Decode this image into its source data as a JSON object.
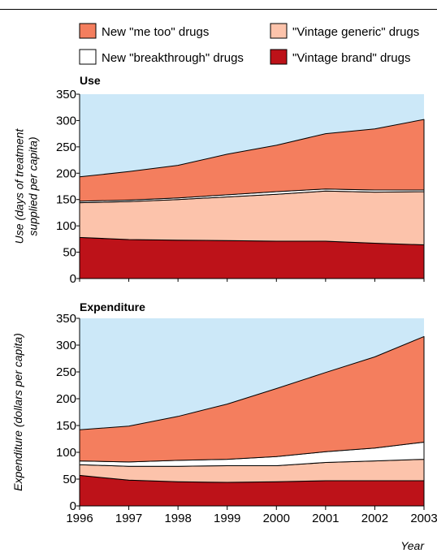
{
  "chart_data": {
    "type": "area",
    "stacked": true,
    "x": [
      1996,
      1997,
      1998,
      1999,
      2000,
      2001,
      2002,
      2003
    ],
    "xlabel": "Year",
    "legend": [
      {
        "name": "New \"me too\" drugs",
        "color": "#f47e5e"
      },
      {
        "name": "\"Vintage generic\" drugs",
        "color": "#fcc3ab"
      },
      {
        "name": "New \"breakthrough\" drugs",
        "color": "#ffffff"
      },
      {
        "name": "\"Vintage brand\" drugs",
        "color": "#bd1219"
      }
    ],
    "panels": [
      {
        "title": "Use",
        "ylabel_lines": [
          "Use (days of treatment",
          "supplied per capita)"
        ],
        "ylim": [
          0,
          350
        ],
        "yticks": [
          0,
          50,
          100,
          150,
          200,
          250,
          300,
          350
        ],
        "series": [
          {
            "name": "\"Vintage brand\" drugs",
            "color": "#bd1219",
            "values": [
              78,
              74,
              73,
              72,
              71,
              71,
              67,
              64
            ]
          },
          {
            "name": "\"Vintage generic\" drugs",
            "color": "#fcc3ab",
            "values": [
              66,
              72,
              77,
              83,
              89,
              95,
              97,
              101
            ]
          },
          {
            "name": "New \"breakthrough\" drugs",
            "color": "#ffffff",
            "values": [
              3,
              3,
              3,
              4,
              5,
              4,
              4,
              3
            ]
          },
          {
            "name": "New \"me too\" drugs",
            "color": "#f47e5e",
            "values": [
              46,
              54,
              62,
              77,
              88,
              105,
              116,
              134
            ]
          }
        ]
      },
      {
        "title": "Expenditure",
        "ylabel_lines": [
          "Expenditure (dollars per capita)"
        ],
        "ylim": [
          0,
          350
        ],
        "yticks": [
          0,
          50,
          100,
          150,
          200,
          250,
          300,
          350
        ],
        "series": [
          {
            "name": "\"Vintage brand\" drugs",
            "color": "#bd1219",
            "values": [
              57,
              48,
              45,
              44,
              45,
              47,
              47,
              47
            ]
          },
          {
            "name": "\"Vintage generic\" drugs",
            "color": "#fcc3ab",
            "values": [
              20,
              26,
              29,
              31,
              30,
              34,
              37,
              40
            ]
          },
          {
            "name": "New \"breakthrough\" drugs",
            "color": "#ffffff",
            "values": [
              7,
              8,
              11,
              12,
              17,
              20,
              24,
              32
            ]
          },
          {
            "name": "New \"me too\" drugs",
            "color": "#f47e5e",
            "values": [
              58,
              67,
              82,
              103,
              127,
              148,
              170,
              197
            ]
          }
        ]
      }
    ],
    "background_color": "#cce8f8"
  }
}
